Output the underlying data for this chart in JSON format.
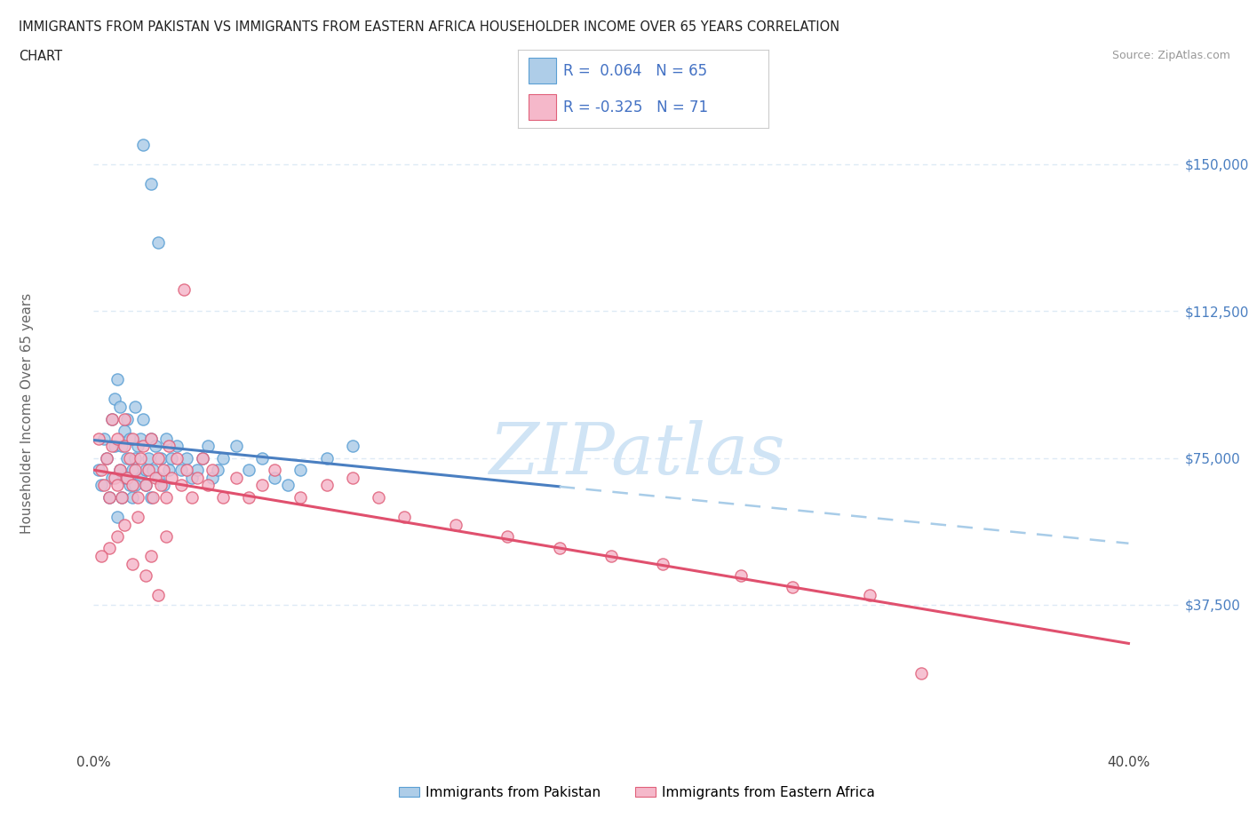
{
  "title_line1": "IMMIGRANTS FROM PAKISTAN VS IMMIGRANTS FROM EASTERN AFRICA HOUSEHOLDER INCOME OVER 65 YEARS CORRELATION",
  "title_line2": "CHART",
  "source_text": "Source: ZipAtlas.com",
  "ylabel": "Householder Income Over 65 years",
  "x_min": 0.0,
  "x_max": 0.42,
  "y_min": 0,
  "y_max": 168750,
  "y_tick_values": [
    37500,
    75000,
    112500,
    150000
  ],
  "y_tick_labels": [
    "$37,500",
    "$75,000",
    "$112,500",
    "$150,000"
  ],
  "pakistan_fill": "#aecde8",
  "pakistan_edge": "#5a9fd4",
  "ea_fill": "#f5b8ca",
  "ea_edge": "#e0607a",
  "pak_line_color": "#4a7fc1",
  "ea_line_color": "#e0506e",
  "dashed_color": "#a8cce8",
  "grid_color": "#ddeaf5",
  "background": "#ffffff",
  "legend_text_color": "#4472c4",
  "watermark_color": "#d0e4f5",
  "pakistan_x": [
    0.002,
    0.003,
    0.004,
    0.005,
    0.006,
    0.007,
    0.007,
    0.008,
    0.008,
    0.009,
    0.009,
    0.01,
    0.01,
    0.011,
    0.011,
    0.012,
    0.012,
    0.013,
    0.013,
    0.014,
    0.014,
    0.015,
    0.015,
    0.016,
    0.016,
    0.017,
    0.018,
    0.018,
    0.019,
    0.02,
    0.02,
    0.021,
    0.022,
    0.022,
    0.023,
    0.024,
    0.025,
    0.026,
    0.027,
    0.028,
    0.029,
    0.03,
    0.032,
    0.034,
    0.036,
    0.038,
    0.04,
    0.042,
    0.044,
    0.046,
    0.048,
    0.05,
    0.055,
    0.06,
    0.065,
    0.07,
    0.075,
    0.08,
    0.09,
    0.1,
    0.025,
    0.022,
    0.019,
    0.016,
    0.013
  ],
  "pakistan_y": [
    72000,
    68000,
    80000,
    75000,
    65000,
    85000,
    70000,
    90000,
    78000,
    95000,
    60000,
    72000,
    88000,
    65000,
    78000,
    82000,
    70000,
    75000,
    85000,
    68000,
    80000,
    72000,
    65000,
    88000,
    75000,
    78000,
    70000,
    80000,
    85000,
    72000,
    68000,
    75000,
    80000,
    65000,
    72000,
    78000,
    70000,
    75000,
    68000,
    80000,
    72000,
    75000,
    78000,
    72000,
    75000,
    70000,
    72000,
    75000,
    78000,
    70000,
    72000,
    75000,
    78000,
    72000,
    75000,
    70000,
    68000,
    72000,
    75000,
    78000,
    130000,
    145000,
    155000,
    68000,
    70000
  ],
  "eastern_africa_x": [
    0.002,
    0.003,
    0.004,
    0.005,
    0.006,
    0.007,
    0.007,
    0.008,
    0.009,
    0.009,
    0.01,
    0.011,
    0.012,
    0.012,
    0.013,
    0.014,
    0.015,
    0.015,
    0.016,
    0.017,
    0.018,
    0.019,
    0.02,
    0.021,
    0.022,
    0.023,
    0.024,
    0.025,
    0.026,
    0.027,
    0.028,
    0.029,
    0.03,
    0.032,
    0.034,
    0.036,
    0.038,
    0.04,
    0.042,
    0.044,
    0.046,
    0.05,
    0.055,
    0.06,
    0.065,
    0.07,
    0.08,
    0.09,
    0.1,
    0.11,
    0.12,
    0.14,
    0.16,
    0.18,
    0.2,
    0.22,
    0.25,
    0.27,
    0.3,
    0.32,
    0.035,
    0.028,
    0.022,
    0.017,
    0.012,
    0.009,
    0.006,
    0.003,
    0.015,
    0.02,
    0.025
  ],
  "eastern_africa_y": [
    80000,
    72000,
    68000,
    75000,
    65000,
    78000,
    85000,
    70000,
    80000,
    68000,
    72000,
    65000,
    78000,
    85000,
    70000,
    75000,
    68000,
    80000,
    72000,
    65000,
    75000,
    78000,
    68000,
    72000,
    80000,
    65000,
    70000,
    75000,
    68000,
    72000,
    65000,
    78000,
    70000,
    75000,
    68000,
    72000,
    65000,
    70000,
    75000,
    68000,
    72000,
    65000,
    70000,
    65000,
    68000,
    72000,
    65000,
    68000,
    70000,
    65000,
    60000,
    58000,
    55000,
    52000,
    50000,
    48000,
    45000,
    42000,
    40000,
    20000,
    118000,
    55000,
    50000,
    60000,
    58000,
    55000,
    52000,
    50000,
    48000,
    45000,
    40000
  ]
}
